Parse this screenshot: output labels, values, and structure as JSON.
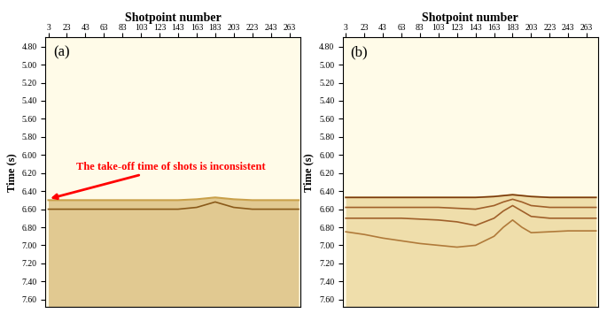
{
  "chart_data": [
    {
      "type": "line",
      "panel_label": "(a)",
      "x_label": "Shotpoint number",
      "y_label": "Time (s)",
      "x": [
        3,
        23,
        43,
        63,
        83,
        103,
        123,
        143,
        163,
        173,
        183,
        193,
        203,
        223,
        243,
        263,
        273
      ],
      "series": [
        {
          "type": "area",
          "color": "#c9a04a",
          "values": [
            6.5,
            6.5,
            6.5,
            6.5,
            6.5,
            6.5,
            6.5,
            6.5,
            6.49,
            6.48,
            6.47,
            6.48,
            6.49,
            6.5,
            6.5,
            6.5,
            6.5
          ]
        },
        {
          "type": "line",
          "color": "#8a5a1a",
          "values": [
            6.6,
            6.6,
            6.6,
            6.6,
            6.6,
            6.6,
            6.6,
            6.6,
            6.58,
            6.55,
            6.52,
            6.55,
            6.58,
            6.6,
            6.6,
            6.6,
            6.6
          ]
        }
      ],
      "annotation": {
        "text": "The take-off time of shots is inconsistent",
        "color": "#ff0000"
      },
      "xlim": [
        0,
        275
      ],
      "ylim": [
        7.68,
        4.7
      ],
      "xticks": [
        3,
        23,
        43,
        63,
        83,
        103,
        123,
        143,
        163,
        183,
        203,
        223,
        243,
        263
      ],
      "yticks": [
        {
          "value": 4.8,
          "label": "4.80"
        },
        {
          "value": 5.0,
          "label": "5.00"
        },
        {
          "value": 5.2,
          "label": "5.20"
        },
        {
          "value": 5.4,
          "label": "5.40"
        },
        {
          "value": 5.6,
          "label": "5.60"
        },
        {
          "value": 5.8,
          "label": "5.80"
        },
        {
          "value": 6.0,
          "label": "6.00"
        },
        {
          "value": 6.2,
          "label": "6.20"
        },
        {
          "value": 6.4,
          "label": "6.40"
        },
        {
          "value": 6.6,
          "label": "6.60"
        },
        {
          "value": 6.8,
          "label": "6.80"
        },
        {
          "value": 7.0,
          "label": "7.00"
        },
        {
          "value": 7.2,
          "label": "7.20"
        },
        {
          "value": 7.4,
          "label": "7.40"
        },
        {
          "value": 7.6,
          "label": "7.60"
        }
      ]
    },
    {
      "type": "line",
      "panel_label": "(b)",
      "x_label": "Shotpoint number",
      "y_label": "Time (s)",
      "x": [
        3,
        23,
        43,
        63,
        83,
        103,
        123,
        143,
        163,
        173,
        183,
        193,
        203,
        223,
        243,
        263,
        273
      ],
      "series": [
        {
          "type": "area",
          "color": "#e3c77a",
          "values": [
            6.47,
            6.47,
            6.47,
            6.47,
            6.47,
            6.47,
            6.47,
            6.47,
            6.46,
            6.45,
            6.44,
            6.45,
            6.46,
            6.47,
            6.47,
            6.47,
            6.47
          ]
        },
        {
          "type": "line",
          "color": "#7a3a10",
          "values": [
            6.47,
            6.47,
            6.47,
            6.47,
            6.47,
            6.47,
            6.47,
            6.47,
            6.46,
            6.45,
            6.44,
            6.45,
            6.46,
            6.47,
            6.47,
            6.47,
            6.47
          ]
        },
        {
          "type": "line",
          "color": "#a0602a",
          "values": [
            6.58,
            6.58,
            6.58,
            6.58,
            6.58,
            6.58,
            6.59,
            6.6,
            6.56,
            6.52,
            6.49,
            6.52,
            6.56,
            6.58,
            6.58,
            6.58,
            6.58
          ]
        },
        {
          "type": "line",
          "color": "#a0602a",
          "values": [
            6.7,
            6.7,
            6.7,
            6.7,
            6.71,
            6.72,
            6.74,
            6.78,
            6.7,
            6.62,
            6.56,
            6.62,
            6.68,
            6.7,
            6.7,
            6.7,
            6.7
          ]
        },
        {
          "type": "line",
          "color": "#b07a3a",
          "values": [
            6.85,
            6.88,
            6.92,
            6.95,
            6.98,
            7.0,
            7.02,
            7.0,
            6.9,
            6.8,
            6.72,
            6.8,
            6.86,
            6.85,
            6.84,
            6.84,
            6.84
          ]
        }
      ],
      "xlim": [
        0,
        275
      ],
      "ylim": [
        7.68,
        4.7
      ],
      "xticks": [
        3,
        23,
        43,
        63,
        83,
        103,
        123,
        143,
        163,
        183,
        203,
        223,
        243,
        263
      ],
      "yticks": [
        {
          "value": 4.8,
          "label": "4.80"
        },
        {
          "value": 5.0,
          "label": "5.00"
        },
        {
          "value": 5.2,
          "label": "5.20"
        },
        {
          "value": 5.4,
          "label": "5.40"
        },
        {
          "value": 5.6,
          "label": "5.60"
        },
        {
          "value": 5.8,
          "label": "5.80"
        },
        {
          "value": 6.0,
          "label": "6.00"
        },
        {
          "value": 6.2,
          "label": "6.20"
        },
        {
          "value": 6.4,
          "label": "6.40"
        },
        {
          "value": 6.6,
          "label": "6.60"
        },
        {
          "value": 6.8,
          "label": "6.80"
        },
        {
          "value": 7.0,
          "label": "7.00"
        },
        {
          "value": 7.2,
          "label": "7.20"
        },
        {
          "value": 7.4,
          "label": "7.40"
        },
        {
          "value": 7.6,
          "label": "7.60"
        }
      ]
    }
  ]
}
